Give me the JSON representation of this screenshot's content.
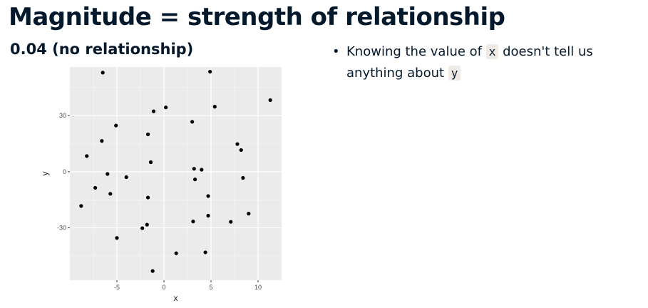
{
  "slide": {
    "title": "Magnitude = strength of relationship",
    "subtitle": "0.04 (no relationship)"
  },
  "bullet": {
    "marker": "•",
    "text_1": "Knowing the value of ",
    "code_x": "x",
    "text_2": " doesn't tell us anything about ",
    "code_y": "y"
  },
  "chart_data": {
    "type": "scatter",
    "xlabel": "x",
    "ylabel": "y",
    "xlim": [
      -10,
      12.5
    ],
    "ylim": [
      -58,
      56
    ],
    "xticks": [
      -5,
      0,
      5,
      10
    ],
    "yticks": [
      -30,
      0,
      30
    ],
    "grid": true,
    "panel_color": "#ebebeb",
    "point_color": "#000000",
    "points": [
      {
        "x": -6.5,
        "y": 53
      },
      {
        "x": 4.9,
        "y": 53.5
      },
      {
        "x": 11.3,
        "y": 38.3
      },
      {
        "x": 0.2,
        "y": 34.4
      },
      {
        "x": 5.4,
        "y": 34.8
      },
      {
        "x": -1.1,
        "y": 32.3
      },
      {
        "x": 3.0,
        "y": 26.7
      },
      {
        "x": -5.1,
        "y": 24.7
      },
      {
        "x": -1.7,
        "y": 20.0
      },
      {
        "x": -6.6,
        "y": 16.5
      },
      {
        "x": 7.8,
        "y": 14.8
      },
      {
        "x": 8.2,
        "y": 11.6
      },
      {
        "x": -8.2,
        "y": 8.4
      },
      {
        "x": -1.4,
        "y": 5.1
      },
      {
        "x": 3.2,
        "y": 1.6
      },
      {
        "x": 4.0,
        "y": 1.1
      },
      {
        "x": -6.0,
        "y": -1.2
      },
      {
        "x": -4.0,
        "y": -2.9
      },
      {
        "x": 3.3,
        "y": -4.1
      },
      {
        "x": 8.4,
        "y": -3.3
      },
      {
        "x": -7.3,
        "y": -8.6
      },
      {
        "x": -5.7,
        "y": -11.8
      },
      {
        "x": -1.7,
        "y": -13.8
      },
      {
        "x": 4.7,
        "y": -13.0
      },
      {
        "x": -8.8,
        "y": -18.3
      },
      {
        "x": 9.0,
        "y": -22.4
      },
      {
        "x": 4.7,
        "y": -23.5
      },
      {
        "x": 3.1,
        "y": -26.6
      },
      {
        "x": 7.1,
        "y": -26.8
      },
      {
        "x": -1.8,
        "y": -28.3
      },
      {
        "x": -2.3,
        "y": -30.2
      },
      {
        "x": -5.0,
        "y": -35.4
      },
      {
        "x": 1.3,
        "y": -43.6
      },
      {
        "x": 4.4,
        "y": -43.1
      },
      {
        "x": -1.2,
        "y": -53.1
      }
    ]
  }
}
